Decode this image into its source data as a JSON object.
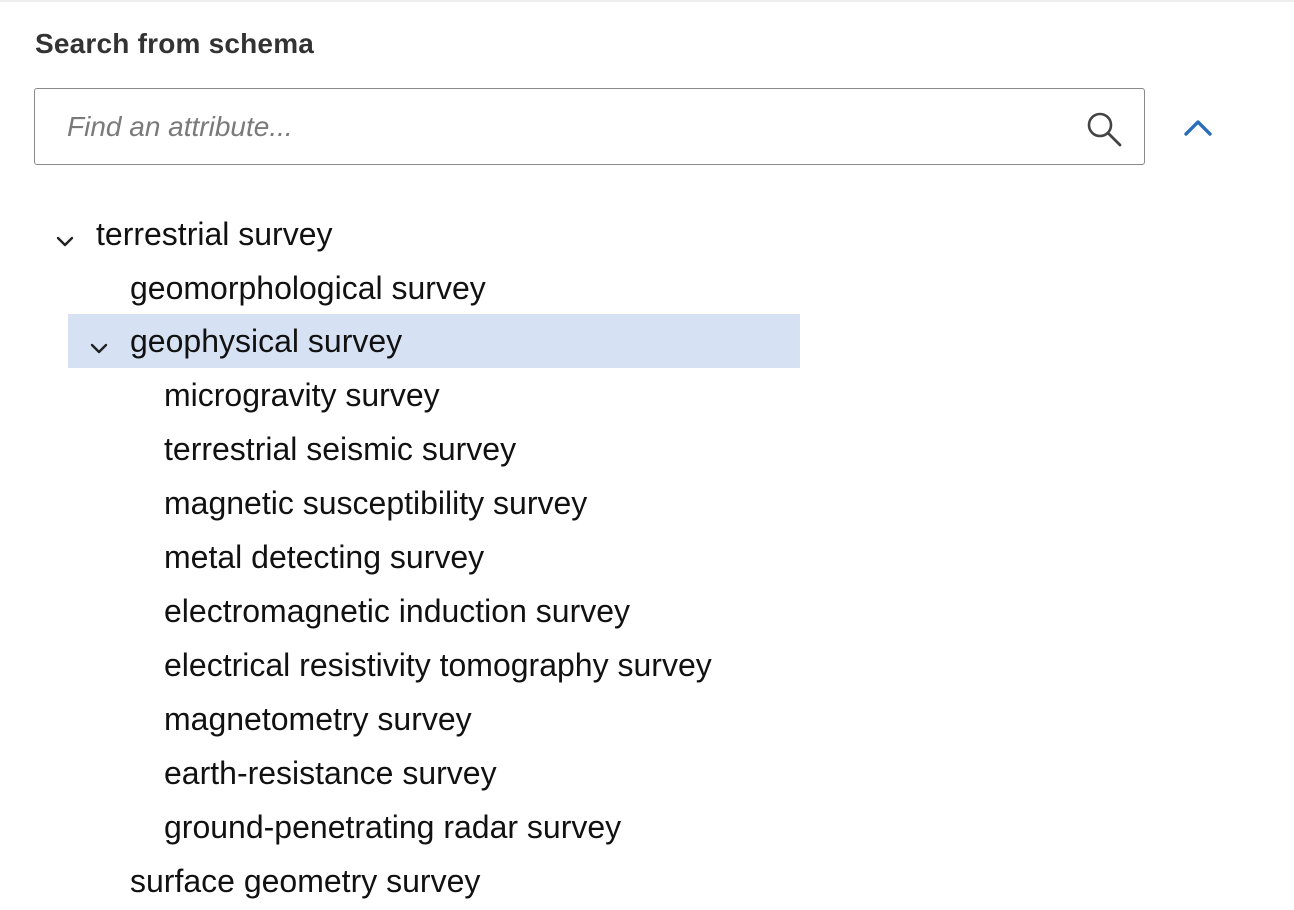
{
  "panel": {
    "heading": "Search from schema"
  },
  "search": {
    "placeholder": "Find an attribute...",
    "value": ""
  },
  "icons": {
    "search": "search-icon",
    "collapse": "chevron-up-icon",
    "expanded": "chevron-down-icon"
  },
  "colors": {
    "accent": "#2a6ebb",
    "selected_bg": "#d6e2f3",
    "border": "#8a8a8a"
  },
  "tree": {
    "root": {
      "label": "terrestrial survey",
      "expanded": true
    },
    "children": [
      {
        "label": "geomorphological survey"
      },
      {
        "label": "geophysical survey",
        "expanded": true,
        "selected": true,
        "children": [
          {
            "label": "microgravity survey"
          },
          {
            "label": "terrestrial seismic survey"
          },
          {
            "label": "magnetic susceptibility survey"
          },
          {
            "label": "metal detecting survey"
          },
          {
            "label": "electromagnetic induction survey"
          },
          {
            "label": "electrical resistivity tomography survey"
          },
          {
            "label": "magnetometry survey"
          },
          {
            "label": "earth-resistance survey"
          },
          {
            "label": "ground-penetrating radar survey"
          }
        ]
      },
      {
        "label": "surface geometry survey"
      }
    ]
  }
}
